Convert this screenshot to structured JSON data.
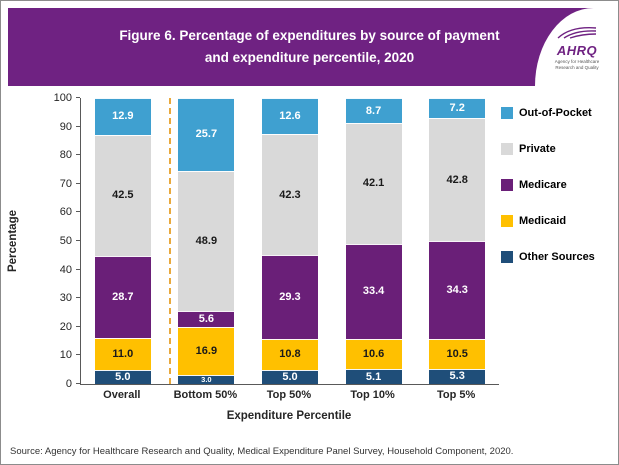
{
  "header": {
    "title_line1": "Figure 6. Percentage of expenditures by source of payment",
    "title_line2": "and expenditure percentile, 2020",
    "background_color": "#6F2282",
    "logo": {
      "abbr": "AHRQ",
      "tagline": "Agency for Healthcare Research and Quality"
    }
  },
  "chart_data": {
    "type": "bar",
    "stacked": true,
    "title": "Figure 6. Percentage of expenditures by source of payment and expenditure percentile, 2020",
    "categories": [
      "Overall",
      "Bottom 50%",
      "Top 50%",
      "Top 10%",
      "Top 5%"
    ],
    "series": [
      {
        "name": "Other Sources",
        "color": "#1F4E79",
        "label_color": "#FFFFFF",
        "values": [
          5.0,
          3.0,
          5.0,
          5.1,
          5.3
        ]
      },
      {
        "name": "Medicaid",
        "color": "#FFC000",
        "label_color": "#1A1A1A",
        "values": [
          11.0,
          16.9,
          10.8,
          10.6,
          10.5
        ]
      },
      {
        "name": "Medicare",
        "color": "#6A1F78",
        "label_color": "#FFFFFF",
        "values": [
          28.7,
          5.6,
          29.3,
          33.4,
          34.3
        ]
      },
      {
        "name": "Private",
        "color": "#D9D9D9",
        "label_color": "#1A1A1A",
        "values": [
          42.5,
          48.9,
          42.3,
          42.1,
          42.8
        ]
      },
      {
        "name": "Out-of-Pocket",
        "color": "#3FA0D0",
        "label_color": "#FFFFFF",
        "values": [
          12.9,
          25.7,
          12.6,
          8.7,
          7.2
        ]
      }
    ],
    "legend_order": [
      "Out-of-Pocket",
      "Private",
      "Medicare",
      "Medicaid",
      "Other Sources"
    ],
    "legend_position": "right",
    "xlabel": "Expenditure Percentile",
    "ylabel": "Percentage",
    "ylim": [
      0,
      100
    ],
    "ytick_step": 10,
    "grid": false,
    "divider_after_category": "Overall",
    "divider_color": "#E9A93D"
  },
  "footer": {
    "source": "Source: Agency for Healthcare Research and Quality, Medical Expenditure Panel Survey, Household Component, 2020."
  }
}
